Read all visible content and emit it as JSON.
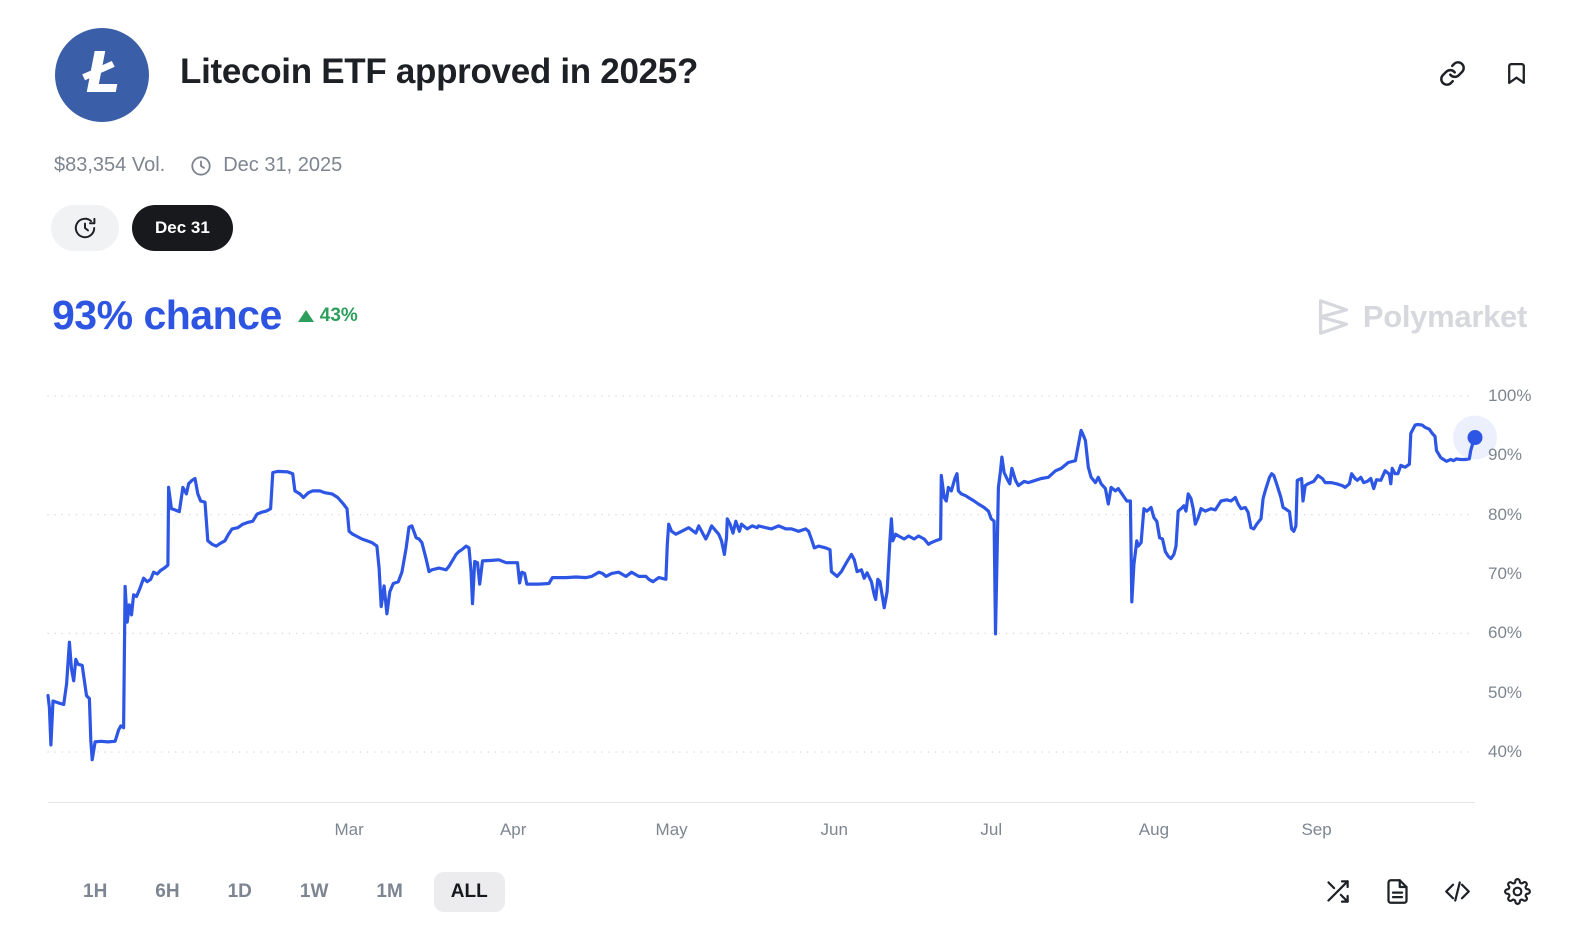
{
  "header": {
    "title": "Litecoin ETF approved in 2025?",
    "logo_glyph": "Ł",
    "logo_color": "#3b5ea8",
    "volume": "$83,354 Vol.",
    "end_date": "Dec 31, 2025"
  },
  "pills": {
    "date_label": "Dec 31"
  },
  "chance": {
    "label": "93% chance",
    "delta": "43%",
    "delta_direction": "up"
  },
  "watermark": {
    "label": "Polymarket"
  },
  "footer": {
    "ranges": [
      {
        "label": "1H",
        "active": false
      },
      {
        "label": "6H",
        "active": false
      },
      {
        "label": "1D",
        "active": false
      },
      {
        "label": "1W",
        "active": false
      },
      {
        "label": "1M",
        "active": false
      },
      {
        "label": "ALL",
        "active": true
      }
    ],
    "icon_names": [
      "shuffle-icon",
      "file-text-icon",
      "code-icon",
      "gear-icon"
    ]
  },
  "colors": {
    "accent_blue": "#2d56e4",
    "chance_blue": "#2d55e2",
    "green": "#2e9e5c",
    "gridline": "#dcdfe4",
    "axis_text": "#7d8690",
    "watermark": "#d6d8dd"
  },
  "chart_data": {
    "type": "line",
    "series_name": "chance",
    "line_color": "#2d56e4",
    "grid": "dotted horizontal at 40/60/80/100",
    "grid_values": [
      100,
      80,
      60,
      40
    ],
    "ylim": [
      40,
      100
    ],
    "y_ticks": [
      {
        "label": "100%",
        "value": 100
      },
      {
        "label": "90%",
        "value": 90
      },
      {
        "label": "80%",
        "value": 80
      },
      {
        "label": "70%",
        "value": 70
      },
      {
        "label": "60%",
        "value": 60
      },
      {
        "label": "50%",
        "value": 50
      },
      {
        "label": "40%",
        "value": 40
      }
    ],
    "x_ticks": [
      {
        "label": "Mar",
        "pos": 0.211
      },
      {
        "label": "Apr",
        "pos": 0.326
      },
      {
        "label": "May",
        "pos": 0.437
      },
      {
        "label": "Jun",
        "pos": 0.551
      },
      {
        "label": "Jul",
        "pos": 0.661
      },
      {
        "label": "Aug",
        "pos": 0.775
      },
      {
        "label": "Sep",
        "pos": 0.889
      }
    ],
    "end_point": {
      "x": 100,
      "value": 93
    },
    "points": [
      [
        0,
        49.5
      ],
      [
        0.1,
        47.5
      ],
      [
        0.2,
        41.2
      ],
      [
        0.35,
        48.6
      ],
      [
        0.7,
        48.3
      ],
      [
        1.1,
        48.0
      ],
      [
        1.3,
        51.5
      ],
      [
        1.5,
        58.5
      ],
      [
        1.65,
        54.0
      ],
      [
        1.8,
        52.0
      ],
      [
        1.95,
        55.6
      ],
      [
        2.1,
        54.8
      ],
      [
        2.4,
        54.6
      ],
      [
        2.55,
        52.0
      ],
      [
        2.7,
        49.5
      ],
      [
        2.9,
        49.0
      ],
      [
        3.0,
        42.0
      ],
      [
        3.1,
        38.7
      ],
      [
        3.3,
        41.7
      ],
      [
        3.7,
        41.8
      ],
      [
        4.2,
        41.7
      ],
      [
        4.7,
        41.8
      ],
      [
        4.95,
        43.7
      ],
      [
        5.1,
        44.4
      ],
      [
        5.3,
        44.1
      ],
      [
        5.4,
        67.9
      ],
      [
        5.55,
        61.9
      ],
      [
        5.7,
        64.8
      ],
      [
        5.85,
        63.1
      ],
      [
        6.0,
        66.5
      ],
      [
        6.2,
        66.2
      ],
      [
        6.45,
        67.6
      ],
      [
        6.7,
        69.3
      ],
      [
        6.95,
        68.7
      ],
      [
        7.2,
        69.1
      ],
      [
        7.4,
        70.3
      ],
      [
        7.65,
        70.0
      ],
      [
        7.9,
        70.6
      ],
      [
        8.15,
        71.0
      ],
      [
        8.4,
        71.5
      ],
      [
        8.45,
        84.6
      ],
      [
        8.65,
        81.0
      ],
      [
        8.9,
        80.8
      ],
      [
        9.2,
        80.5
      ],
      [
        9.45,
        84.6
      ],
      [
        9.7,
        83.5
      ],
      [
        9.85,
        85.2
      ],
      [
        10.1,
        85.8
      ],
      [
        10.3,
        86.1
      ],
      [
        10.5,
        83.5
      ],
      [
        10.7,
        82.3
      ],
      [
        11.0,
        82.1
      ],
      [
        11.2,
        75.6
      ],
      [
        11.5,
        75.0
      ],
      [
        11.8,
        74.7
      ],
      [
        12.1,
        75.2
      ],
      [
        12.4,
        75.6
      ],
      [
        12.65,
        76.7
      ],
      [
        12.9,
        77.6
      ],
      [
        13.3,
        77.8
      ],
      [
        13.65,
        78.4
      ],
      [
        14.0,
        78.7
      ],
      [
        14.35,
        78.9
      ],
      [
        14.65,
        80.1
      ],
      [
        14.95,
        80.4
      ],
      [
        15.3,
        80.6
      ],
      [
        15.6,
        81.0
      ],
      [
        15.75,
        87.1
      ],
      [
        16.1,
        87.3
      ],
      [
        16.8,
        87.2
      ],
      [
        17.15,
        86.9
      ],
      [
        17.3,
        84.0
      ],
      [
        17.65,
        83.5
      ],
      [
        17.9,
        82.9
      ],
      [
        18.25,
        83.7
      ],
      [
        18.55,
        84.0
      ],
      [
        19.05,
        84.0
      ],
      [
        19.4,
        83.7
      ],
      [
        19.9,
        83.5
      ],
      [
        20.3,
        82.9
      ],
      [
        20.7,
        81.8
      ],
      [
        20.95,
        81.0
      ],
      [
        21.1,
        77.2
      ],
      [
        21.35,
        76.7
      ],
      [
        21.6,
        76.4
      ],
      [
        22.0,
        75.9
      ],
      [
        22.35,
        75.6
      ],
      [
        22.7,
        75.3
      ],
      [
        23.05,
        74.7
      ],
      [
        23.2,
        71.0
      ],
      [
        23.35,
        64.5
      ],
      [
        23.55,
        68.0
      ],
      [
        23.75,
        63.3
      ],
      [
        23.95,
        67.0
      ],
      [
        24.2,
        68.4
      ],
      [
        24.55,
        68.7
      ],
      [
        24.8,
        70.3
      ],
      [
        25.1,
        74.4
      ],
      [
        25.3,
        77.9
      ],
      [
        25.5,
        78.1
      ],
      [
        25.8,
        76.1
      ],
      [
        26.0,
        75.9
      ],
      [
        26.2,
        75.3
      ],
      [
        26.5,
        72.5
      ],
      [
        26.7,
        70.4
      ],
      [
        26.9,
        70.7
      ],
      [
        27.4,
        71.0
      ],
      [
        27.9,
        70.7
      ],
      [
        28.1,
        71.3
      ],
      [
        28.6,
        73.3
      ],
      [
        28.8,
        73.8
      ],
      [
        29.0,
        74.1
      ],
      [
        29.3,
        74.7
      ],
      [
        29.5,
        74.4
      ],
      [
        29.65,
        70.3
      ],
      [
        29.75,
        65.0
      ],
      [
        29.9,
        72.1
      ],
      [
        30.1,
        71.9
      ],
      [
        30.25,
        68.3
      ],
      [
        30.45,
        72.2
      ],
      [
        31.1,
        72.3
      ],
      [
        31.6,
        72.4
      ],
      [
        32.1,
        71.9
      ],
      [
        32.9,
        71.9
      ],
      [
        33.05,
        68.5
      ],
      [
        33.2,
        70.3
      ],
      [
        33.4,
        70.1
      ],
      [
        33.55,
        68.3
      ],
      [
        34.4,
        68.3
      ],
      [
        35.1,
        68.4
      ],
      [
        35.35,
        69.4
      ],
      [
        35.8,
        69.4
      ],
      [
        36.3,
        69.4
      ],
      [
        37.0,
        69.5
      ],
      [
        37.7,
        69.4
      ],
      [
        38.1,
        69.6
      ],
      [
        38.6,
        70.3
      ],
      [
        38.85,
        70.1
      ],
      [
        39.1,
        69.6
      ],
      [
        39.5,
        70.1
      ],
      [
        40.0,
        70.3
      ],
      [
        40.5,
        69.6
      ],
      [
        40.9,
        70.3
      ],
      [
        41.4,
        69.6
      ],
      [
        41.9,
        69.6
      ],
      [
        42.1,
        69.1
      ],
      [
        42.4,
        68.7
      ],
      [
        42.8,
        69.4
      ],
      [
        43.3,
        69.1
      ],
      [
        43.4,
        75.0
      ],
      [
        43.5,
        78.4
      ],
      [
        43.7,
        77.2
      ],
      [
        44.0,
        76.7
      ],
      [
        44.4,
        77.2
      ],
      [
        44.9,
        77.8
      ],
      [
        45.4,
        76.9
      ],
      [
        45.6,
        78.1
      ],
      [
        46.1,
        75.9
      ],
      [
        46.3,
        76.9
      ],
      [
        46.5,
        78.1
      ],
      [
        47.0,
        76.7
      ],
      [
        47.2,
        75.6
      ],
      [
        47.4,
        73.3
      ],
      [
        47.55,
        76.1
      ],
      [
        47.6,
        79.3
      ],
      [
        47.8,
        78.4
      ],
      [
        48.0,
        76.9
      ],
      [
        48.2,
        78.9
      ],
      [
        48.45,
        77.2
      ],
      [
        48.6,
        78.4
      ],
      [
        49.0,
        77.6
      ],
      [
        49.35,
        78.1
      ],
      [
        49.7,
        77.8
      ],
      [
        49.8,
        78.1
      ],
      [
        50.3,
        77.8
      ],
      [
        50.7,
        77.6
      ],
      [
        51.2,
        78.1
      ],
      [
        51.7,
        77.6
      ],
      [
        52.1,
        77.6
      ],
      [
        52.6,
        77.2
      ],
      [
        53.1,
        77.6
      ],
      [
        53.3,
        77.2
      ],
      [
        53.5,
        75.9
      ],
      [
        53.7,
        74.4
      ],
      [
        54.0,
        74.7
      ],
      [
        54.5,
        74.4
      ],
      [
        54.8,
        74.1
      ],
      [
        54.9,
        70.4
      ],
      [
        55.1,
        70.0
      ],
      [
        55.3,
        69.6
      ],
      [
        55.6,
        70.4
      ],
      [
        55.8,
        71.3
      ],
      [
        56.0,
        72.1
      ],
      [
        56.3,
        73.3
      ],
      [
        56.5,
        72.4
      ],
      [
        56.7,
        70.4
      ],
      [
        57.0,
        70.7
      ],
      [
        57.2,
        69.3
      ],
      [
        57.4,
        70.2
      ],
      [
        57.7,
        68.7
      ],
      [
        57.9,
        66.5
      ],
      [
        58.0,
        65.7
      ],
      [
        58.15,
        69.1
      ],
      [
        58.3,
        68.7
      ],
      [
        58.45,
        66.5
      ],
      [
        58.6,
        64.3
      ],
      [
        58.8,
        67.0
      ],
      [
        59.0,
        75.6
      ],
      [
        59.1,
        79.3
      ],
      [
        59.2,
        75.6
      ],
      [
        59.4,
        76.7
      ],
      [
        59.6,
        76.4
      ],
      [
        60.0,
        75.9
      ],
      [
        60.3,
        76.4
      ],
      [
        60.7,
        75.9
      ],
      [
        61.0,
        76.4
      ],
      [
        61.4,
        75.9
      ],
      [
        61.7,
        75.0
      ],
      [
        61.9,
        75.3
      ],
      [
        62.2,
        75.6
      ],
      [
        62.55,
        75.9
      ],
      [
        62.6,
        86.6
      ],
      [
        62.8,
        82.9
      ],
      [
        62.95,
        82.3
      ],
      [
        63.1,
        84.6
      ],
      [
        63.3,
        84.0
      ],
      [
        63.55,
        86.1
      ],
      [
        63.7,
        86.9
      ],
      [
        63.8,
        84.0
      ],
      [
        64.0,
        83.5
      ],
      [
        64.3,
        83.2
      ],
      [
        64.5,
        82.9
      ],
      [
        64.9,
        82.3
      ],
      [
        65.2,
        81.8
      ],
      [
        65.6,
        81.2
      ],
      [
        65.9,
        80.6
      ],
      [
        66.1,
        79.3
      ],
      [
        66.3,
        78.9
      ],
      [
        66.4,
        59.9
      ],
      [
        66.5,
        72.6
      ],
      [
        66.6,
        84.6
      ],
      [
        66.75,
        87.4
      ],
      [
        66.85,
        89.7
      ],
      [
        67.0,
        87.1
      ],
      [
        67.2,
        86.1
      ],
      [
        67.4,
        85.2
      ],
      [
        67.55,
        87.8
      ],
      [
        67.8,
        85.8
      ],
      [
        68.0,
        84.9
      ],
      [
        68.4,
        85.6
      ],
      [
        68.7,
        85.4
      ],
      [
        69.2,
        85.8
      ],
      [
        69.6,
        86.1
      ],
      [
        70.1,
        86.3
      ],
      [
        70.6,
        87.4
      ],
      [
        71.0,
        87.8
      ],
      [
        71.5,
        88.8
      ],
      [
        72.0,
        89.1
      ],
      [
        72.2,
        91.7
      ],
      [
        72.4,
        94.2
      ],
      [
        72.55,
        93.4
      ],
      [
        72.7,
        92.5
      ],
      [
        72.9,
        88.0
      ],
      [
        73.1,
        86.3
      ],
      [
        73.4,
        85.4
      ],
      [
        73.6,
        86.3
      ],
      [
        73.8,
        85.2
      ],
      [
        74.1,
        84.4
      ],
      [
        74.3,
        81.8
      ],
      [
        74.5,
        84.6
      ],
      [
        74.8,
        84.0
      ],
      [
        75.0,
        84.4
      ],
      [
        75.2,
        83.7
      ],
      [
        75.6,
        82.3
      ],
      [
        75.85,
        82.3
      ],
      [
        75.95,
        65.3
      ],
      [
        76.1,
        71.6
      ],
      [
        76.3,
        75.6
      ],
      [
        76.4,
        74.7
      ],
      [
        76.6,
        75.3
      ],
      [
        76.8,
        81.0
      ],
      [
        77.0,
        80.6
      ],
      [
        77.3,
        81.2
      ],
      [
        77.5,
        79.5
      ],
      [
        77.7,
        78.9
      ],
      [
        77.9,
        76.1
      ],
      [
        78.1,
        75.9
      ],
      [
        78.3,
        73.8
      ],
      [
        78.5,
        73.0
      ],
      [
        78.7,
        72.6
      ],
      [
        78.9,
        73.3
      ],
      [
        79.05,
        74.7
      ],
      [
        79.2,
        80.6
      ],
      [
        79.4,
        81.0
      ],
      [
        79.6,
        81.5
      ],
      [
        79.75,
        80.6
      ],
      [
        79.9,
        83.5
      ],
      [
        80.1,
        82.7
      ],
      [
        80.25,
        81.0
      ],
      [
        80.4,
        78.4
      ],
      [
        80.6,
        79.5
      ],
      [
        80.8,
        81.0
      ],
      [
        81.1,
        80.6
      ],
      [
        81.5,
        81.0
      ],
      [
        81.8,
        80.8
      ],
      [
        82.2,
        82.3
      ],
      [
        82.6,
        82.5
      ],
      [
        82.9,
        82.3
      ],
      [
        83.2,
        82.9
      ],
      [
        83.4,
        81.8
      ],
      [
        83.6,
        81.0
      ],
      [
        83.9,
        81.2
      ],
      [
        84.1,
        80.4
      ],
      [
        84.3,
        77.8
      ],
      [
        84.5,
        77.6
      ],
      [
        84.7,
        78.4
      ],
      [
        85.0,
        79.3
      ],
      [
        85.15,
        82.7
      ],
      [
        85.3,
        84.0
      ],
      [
        85.6,
        86.3
      ],
      [
        85.75,
        86.9
      ],
      [
        85.9,
        86.6
      ],
      [
        86.1,
        85.2
      ],
      [
        86.4,
        82.9
      ],
      [
        86.55,
        81.2
      ],
      [
        86.7,
        81.0
      ],
      [
        87.0,
        80.5
      ],
      [
        87.15,
        77.6
      ],
      [
        87.3,
        77.2
      ],
      [
        87.45,
        78.1
      ],
      [
        87.55,
        85.8
      ],
      [
        87.85,
        86.1
      ],
      [
        87.95,
        82.3
      ],
      [
        88.1,
        84.9
      ],
      [
        88.3,
        85.2
      ],
      [
        88.7,
        85.6
      ],
      [
        89.0,
        86.6
      ],
      [
        89.3,
        86.1
      ],
      [
        89.5,
        85.4
      ],
      [
        89.9,
        85.4
      ],
      [
        90.3,
        85.2
      ],
      [
        90.7,
        84.9
      ],
      [
        90.9,
        84.6
      ],
      [
        91.2,
        85.2
      ],
      [
        91.35,
        86.9
      ],
      [
        91.6,
        86.1
      ],
      [
        91.75,
        85.8
      ],
      [
        92.0,
        86.3
      ],
      [
        92.2,
        85.4
      ],
      [
        92.45,
        85.6
      ],
      [
        92.7,
        86.1
      ],
      [
        92.9,
        84.4
      ],
      [
        93.1,
        85.9
      ],
      [
        93.4,
        85.8
      ],
      [
        93.7,
        87.4
      ],
      [
        94.0,
        86.8
      ],
      [
        94.1,
        85.2
      ],
      [
        94.2,
        87.8
      ],
      [
        94.4,
        86.9
      ],
      [
        94.6,
        86.9
      ],
      [
        94.8,
        88.3
      ],
      [
        95.1,
        88.0
      ],
      [
        95.4,
        88.5
      ],
      [
        95.5,
        93.7
      ],
      [
        95.8,
        95.1
      ],
      [
        96.0,
        95.2
      ],
      [
        96.3,
        95.1
      ],
      [
        96.5,
        94.7
      ],
      [
        96.8,
        94.4
      ],
      [
        97.0,
        93.7
      ],
      [
        97.2,
        93.2
      ],
      [
        97.3,
        90.8
      ],
      [
        97.6,
        89.6
      ],
      [
        97.8,
        89.3
      ],
      [
        98.0,
        89.0
      ],
      [
        98.3,
        89.3
      ],
      [
        98.5,
        89.1
      ],
      [
        98.7,
        89.4
      ],
      [
        99.0,
        89.3
      ],
      [
        99.3,
        89.3
      ],
      [
        99.6,
        89.4
      ],
      [
        99.7,
        90.8
      ],
      [
        99.9,
        92.5
      ],
      [
        100,
        93.0
      ]
    ]
  }
}
